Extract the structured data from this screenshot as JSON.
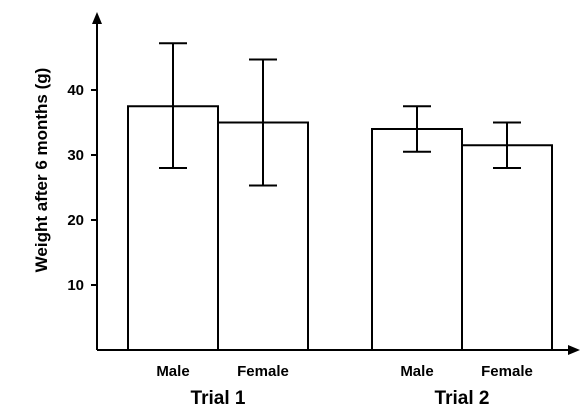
{
  "chart_data": {
    "type": "bar",
    "title": "",
    "xlabel": "",
    "ylabel": "Weight after 6 months (g)",
    "ylim": [
      0,
      50
    ],
    "yticks": [
      10,
      20,
      30,
      40
    ],
    "grid": false,
    "legend": "none",
    "groups": [
      {
        "label": "Trial 1",
        "bars": [
          {
            "category": "Male",
            "value": 37.5,
            "error_low": 28,
            "error_high": 47.2
          },
          {
            "category": "Female",
            "value": 35,
            "error_low": 25.3,
            "error_high": 44.7
          }
        ]
      },
      {
        "label": "Trial 2",
        "bars": [
          {
            "category": "Male",
            "value": 34,
            "error_low": 30.5,
            "error_high": 37.5
          },
          {
            "category": "Female",
            "value": 31.5,
            "error_low": 28,
            "error_high": 35
          }
        ]
      }
    ],
    "colors": {
      "bar_fill": "#ffffff",
      "bar_stroke": "#000000",
      "axis": "#000000"
    }
  }
}
